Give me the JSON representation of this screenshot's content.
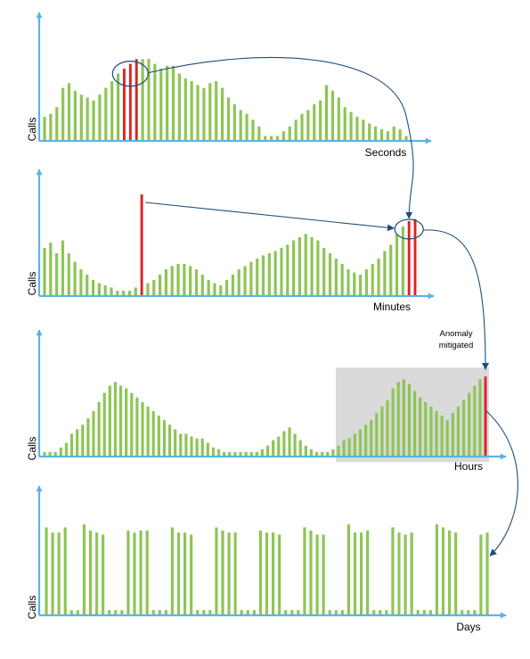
{
  "colors": {
    "axis": "#5BB4E6",
    "bar": "#8DC556",
    "anomaly": "#E02020",
    "arrow": "#1F4E79",
    "mitigation_area": "#DADADA"
  },
  "annotation": {
    "line1": "Anomaly",
    "line2": "mitigated"
  },
  "chart_data": [
    {
      "type": "bar",
      "xlabel": "Seconds",
      "ylabel": "Calls",
      "ylim": [
        0,
        100
      ],
      "values": [
        25,
        28,
        35,
        55,
        60,
        52,
        48,
        45,
        42,
        48,
        55,
        62,
        70,
        75,
        80,
        85,
        85,
        85,
        80,
        75,
        78,
        78,
        70,
        65,
        62,
        58,
        55,
        60,
        62,
        55,
        45,
        38,
        32,
        28,
        22,
        15,
        5,
        5,
        5,
        10,
        15,
        22,
        28,
        32,
        38,
        42,
        58,
        52,
        45,
        35,
        30,
        25,
        22,
        18,
        15,
        12,
        10,
        15,
        12,
        5
      ],
      "anomaly_indices": [
        13,
        14,
        15
      ],
      "highlight_indices": [
        14
      ]
    },
    {
      "type": "bar",
      "xlabel": "Minutes",
      "ylabel": "Calls",
      "ylim": [
        0,
        100
      ],
      "values": [
        45,
        50,
        40,
        52,
        40,
        32,
        25,
        20,
        15,
        12,
        10,
        8,
        5,
        5,
        5,
        8,
        95,
        12,
        15,
        20,
        25,
        28,
        30,
        30,
        28,
        25,
        20,
        15,
        12,
        10,
        15,
        20,
        25,
        28,
        32,
        35,
        38,
        40,
        42,
        45,
        48,
        52,
        55,
        58,
        55,
        52,
        45,
        40,
        35,
        30,
        25,
        22,
        20,
        25,
        30,
        35,
        42,
        48,
        58,
        65,
        70,
        72
      ],
      "anomaly_indices": [
        16,
        60,
        61
      ],
      "highlight_indices": [
        60
      ]
    },
    {
      "type": "bar",
      "xlabel": "Hours",
      "ylabel": "Calls",
      "ylim": [
        0,
        100
      ],
      "values": [
        5,
        5,
        5,
        10,
        15,
        25,
        30,
        35,
        42,
        50,
        60,
        70,
        78,
        82,
        78,
        75,
        70,
        65,
        60,
        55,
        50,
        45,
        40,
        35,
        30,
        25,
        25,
        22,
        20,
        20,
        15,
        10,
        8,
        5,
        5,
        5,
        5,
        5,
        5,
        5,
        8,
        12,
        18,
        22,
        28,
        32,
        25,
        18,
        12,
        8,
        5,
        5,
        5,
        8,
        12,
        18,
        20,
        25,
        30,
        35,
        40,
        48,
        55,
        62,
        75,
        82,
        85,
        80,
        72,
        65,
        60,
        55,
        50,
        45,
        40,
        48,
        55,
        62,
        70,
        78,
        85,
        88
      ],
      "anomaly_indices": [
        81
      ],
      "mitigated_from_index": 54
    },
    {
      "type": "bar",
      "xlabel": "Days",
      "ylabel": "Calls",
      "ylim": [
        0,
        100
      ],
      "values": [
        85,
        80,
        80,
        85,
        5,
        5,
        88,
        82,
        80,
        78,
        5,
        5,
        5,
        82,
        80,
        82,
        82,
        5,
        5,
        5,
        85,
        80,
        80,
        78,
        5,
        5,
        5,
        85,
        82,
        80,
        80,
        5,
        5,
        5,
        82,
        80,
        80,
        78,
        5,
        5,
        5,
        85,
        82,
        78,
        78,
        5,
        5,
        5,
        88,
        80,
        80,
        82,
        5,
        5,
        5,
        85,
        80,
        78,
        80,
        5,
        5,
        5,
        88,
        85,
        82,
        80,
        5,
        5,
        5,
        78,
        80
      ],
      "anomaly_indices": [],
      "arrow_target_index": 70
    }
  ]
}
